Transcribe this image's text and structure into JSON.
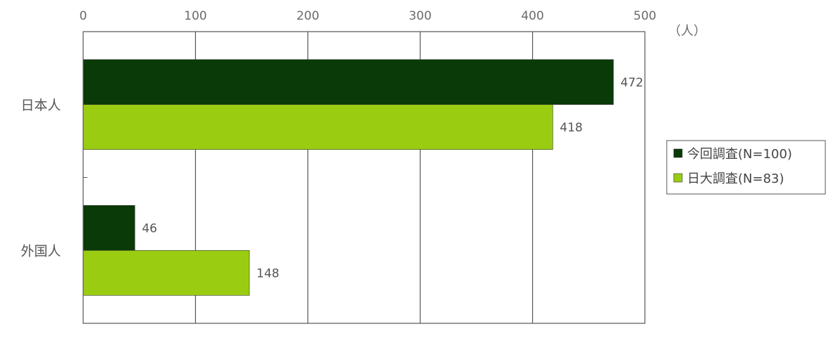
{
  "chart_data": {
    "type": "bar",
    "orientation": "horizontal",
    "categories": [
      "日本人",
      "外国人"
    ],
    "series": [
      {
        "name": "今回調査(N=100)",
        "values": [
          472,
          46
        ],
        "color": "#0a3a07"
      },
      {
        "name": "日大調査(N=83)",
        "values": [
          418,
          148
        ],
        "color": "#9acd12"
      }
    ],
    "xlim": [
      0,
      500
    ],
    "xticks": [
      "0",
      "100",
      "200",
      "300",
      "400",
      "500"
    ],
    "unit": "（人）",
    "grid": true,
    "legend_position": "right",
    "axis_position": "top"
  }
}
